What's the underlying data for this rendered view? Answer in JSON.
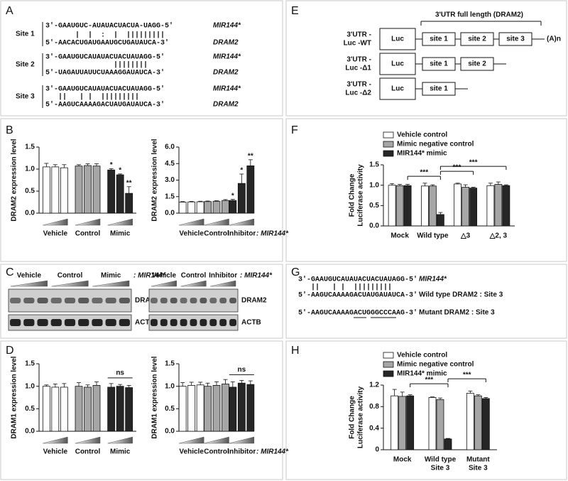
{
  "panel_letters": [
    "A",
    "B",
    "C",
    "D",
    "E",
    "F",
    "G",
    "H"
  ],
  "panel_a": {
    "sites": [
      {
        "label": "Site 1",
        "top": "3'-GAAUGUC-AUAUACUACUA-UAGG-5'",
        "pairs": "       |  |  :  |  ||||||||| ",
        "bottom": "5'-AACACUGAUGAAUGCUGAUAUCA-3'",
        "mirna": "MIR144*",
        "target": "DRAM2"
      },
      {
        "label": "Site 2",
        "top": "3'-GAAUGUCAUAUACUACUAUAGG-5'",
        "pairs": "                ||||||||",
        "bottom": "5'-UAGAUUAUUCUAAAGGAUAUCA-3'",
        "mirna": "MIR144*",
        "target": "DRAM2"
      },
      {
        "label": "Site 3",
        "top": "3'-GAAUGUCAUAUACUACUAUAGG-5'",
        "pairs": "   ||   | |  |||||||||",
        "bottom": "5'-AAGUCAAAAGACUAUGAUAUCA-3'",
        "mirna": "MIR144*",
        "target": "DRAM2"
      }
    ]
  },
  "panel_c": {
    "left": {
      "groups": [
        "Vehicle",
        "Control",
        "Mimic"
      ],
      "suffix": ": MIR144*"
    },
    "right": {
      "groups": [
        "Vehicle",
        "Control",
        "Inhibitor"
      ],
      "suffix": ": MIR144*"
    },
    "bands": [
      "DRAM2",
      "ACTB"
    ]
  },
  "panel_e": {
    "header": "3'UTR full length (DRAM2)",
    "reporter": "Luc",
    "constructs": [
      {
        "label": [
          "3'UTR -",
          "Luc -WT"
        ],
        "sites": [
          "site 1",
          "site 2",
          "site 3"
        ],
        "tail": "(A)n"
      },
      {
        "label": [
          "3'UTR -",
          "Luc -Δ1"
        ],
        "sites": [
          "site 1",
          "site 2"
        ]
      },
      {
        "label": [
          "3'UTR -",
          "Luc -Δ2"
        ],
        "sites": [
          "site 1"
        ]
      }
    ]
  },
  "panel_g": {
    "mirna_seq": "3'-GAAUGUCAUAUACUACUAUAGG-5'",
    "pairs": "   ||   | |  |||||||||",
    "wild_seq": "5'-AAGUCAAAAGACUAUGAUAUCA-3'",
    "mutant_seq": "5'-AAGUCAAAAGACUGGGCCCAAG-3'",
    "mirna": "MIR144*",
    "wild_label": "Wild type DRAM2 : Site 3",
    "mutant_label": "Mutant DRAM2 : Site 3"
  },
  "chart_data": [
    {
      "type": "bar",
      "ylabel": "DRAM2 expression level",
      "categories": [
        null,
        null,
        null
      ],
      "ylim": [
        0,
        1.5
      ],
      "yticks": [
        {
          "value": 0,
          "label": "0.0"
        },
        0.5,
        {
          "value": 1,
          "label": "1.0"
        },
        1.5
      ],
      "series": [
        {
          "name": "Vehicle",
          "color": "#ffffff",
          "values": [
            1.05,
            1.05,
            1.03
          ],
          "errors": [
            0.08,
            0.05,
            0.07
          ]
        },
        {
          "name": "Control",
          "color": "#a6a6a6",
          "values": [
            1.07,
            1.08,
            1.07
          ],
          "errors": [
            0.03,
            0.04,
            0.05
          ]
        },
        {
          "name": "Mimic",
          "color": "#262626",
          "values": [
            0.98,
            0.87,
            0.45
          ],
          "errors": [
            0.03,
            0.02,
            0.15
          ],
          "stars": [
            "*",
            "*",
            "**"
          ]
        }
      ]
    },
    {
      "type": "bar",
      "ylabel": "DRAM2 expression level",
      "categories": [
        null,
        null,
        null
      ],
      "ylim": [
        0,
        6
      ],
      "yticks": [
        {
          "value": 0,
          "label": "0.0"
        },
        1.5,
        {
          "value": 3,
          "label": "3.0"
        },
        4.5,
        {
          "value": 6,
          "label": "6.0"
        }
      ],
      "suffix": ": MIR144*",
      "series": [
        {
          "name": "Vehicle",
          "color": "#ffffff",
          "values": [
            1.0,
            1.02,
            1.03
          ],
          "errors": [
            0.05,
            0.05,
            0.05
          ]
        },
        {
          "name": "Control",
          "color": "#a6a6a6",
          "values": [
            1.05,
            1.08,
            1.15
          ],
          "errors": [
            0.05,
            0.05,
            0.08
          ]
        },
        {
          "name": "Inhibitor",
          "color": "#262626",
          "values": [
            1.15,
            2.7,
            4.3
          ],
          "errors": [
            0.1,
            0.85,
            0.55
          ],
          "stars": [
            "*",
            "*",
            "**"
          ]
        }
      ]
    },
    {
      "type": "bar",
      "ylabel": "DRAM1 expression level",
      "categories": [
        null,
        null,
        null
      ],
      "ylim": [
        0,
        1.5
      ],
      "yticks": [
        {
          "value": 0,
          "label": "0.0"
        },
        0.5,
        {
          "value": 1,
          "label": "1.0"
        },
        1.5
      ],
      "series": [
        {
          "name": "Vehicle",
          "color": "#ffffff",
          "values": [
            1.0,
            0.98,
            0.98
          ],
          "errors": [
            0.03,
            0.07,
            0.08
          ]
        },
        {
          "name": "Control",
          "color": "#a6a6a6",
          "values": [
            1.0,
            0.98,
            1.02
          ],
          "errors": [
            0.08,
            0.05,
            0.08
          ]
        },
        {
          "name": "Mimic",
          "color": "#262626",
          "values": [
            0.98,
            1.0,
            0.97
          ],
          "errors": [
            0.08,
            0.04,
            0.05
          ],
          "bracket": "ns"
        }
      ]
    },
    {
      "type": "bar",
      "ylabel": "DRAM1 expression level",
      "categories": [
        null,
        null,
        null
      ],
      "ylim": [
        0,
        1.5
      ],
      "yticks": [
        {
          "value": 0,
          "label": "0.0"
        },
        0.5,
        {
          "value": 1,
          "label": "1.0"
        },
        1.5
      ],
      "suffix": ": MIR144*",
      "series": [
        {
          "name": "Vehicle",
          "color": "#ffffff",
          "values": [
            1.0,
            1.02,
            1.03
          ],
          "errors": [
            0.08,
            0.07,
            0.06
          ]
        },
        {
          "name": "Control",
          "color": "#a6a6a6",
          "values": [
            1.0,
            1.02,
            1.05
          ],
          "errors": [
            0.07,
            0.08,
            0.1
          ]
        },
        {
          "name": "Inhibitor",
          "color": "#262626",
          "values": [
            0.98,
            1.07,
            1.04
          ],
          "errors": [
            0.12,
            0.06,
            0.08
          ],
          "bracket": "ns"
        }
      ]
    },
    {
      "type": "bar",
      "ylabel": [
        "Fold Change",
        "Luciferase activity"
      ],
      "categories": [
        "Mock",
        "Wild type",
        "△3",
        "△2, 3"
      ],
      "ylim": [
        0,
        1.5
      ],
      "yticks": [
        {
          "value": 0,
          "label": "0.0"
        },
        0.5,
        {
          "value": 1,
          "label": "1.0"
        },
        1.5
      ],
      "legend": "top-left",
      "series": [
        {
          "name": "Vehicle control",
          "color": "#ffffff",
          "values": [
            1.0,
            0.98,
            1.03,
            0.99
          ],
          "errors": [
            0.04,
            0.07,
            0.02,
            0.06
          ]
        },
        {
          "name": "Mimic negative control",
          "color": "#a6a6a6",
          "values": [
            0.99,
            0.98,
            0.95,
            1.02
          ],
          "errors": [
            0.03,
            0.03,
            0.06,
            0.06
          ]
        },
        {
          "name": "MIR144* mimic",
          "color": "#262626",
          "values": [
            0.99,
            0.28,
            0.93,
            0.99
          ],
          "errors": [
            0.03,
            0.05,
            0.02,
            0.02
          ]
        }
      ],
      "comparisons": [
        {
          "label": "***",
          "categories": [
            0,
            1
          ]
        },
        {
          "label": "***",
          "categories": [
            1,
            2
          ]
        },
        {
          "label": "***",
          "categories": [
            1,
            3
          ]
        }
      ]
    },
    {
      "type": "bar",
      "ylabel": [
        "Fold Change",
        "Luciferase activity"
      ],
      "categories": [
        "Mock",
        "Wild type",
        "Mutant"
      ],
      "category_sublabels": [
        null,
        "Site 3",
        "Site 3"
      ],
      "ylim": [
        0,
        1.2
      ],
      "yticks": [
        0,
        0.4,
        0.8,
        1.2
      ],
      "legend": "top-left",
      "series": [
        {
          "name": "Vehicle control",
          "color": "#ffffff",
          "values": [
            1.0,
            0.97,
            1.05
          ],
          "errors": [
            0.12,
            0.01,
            0.04
          ]
        },
        {
          "name": "Mimic negative control",
          "color": "#a6a6a6",
          "values": [
            0.99,
            0.93,
            1.0
          ],
          "errors": [
            0.08,
            0.03,
            0.02
          ]
        },
        {
          "name": "MIR144* mimic",
          "color": "#262626",
          "values": [
            1.0,
            0.2,
            0.95
          ],
          "errors": [
            0.02,
            0.01,
            0.02
          ]
        }
      ],
      "comparisons": [
        {
          "label": "***",
          "categories": [
            0,
            1
          ]
        },
        {
          "label": "***",
          "categories": [
            1,
            2
          ]
        }
      ]
    }
  ]
}
